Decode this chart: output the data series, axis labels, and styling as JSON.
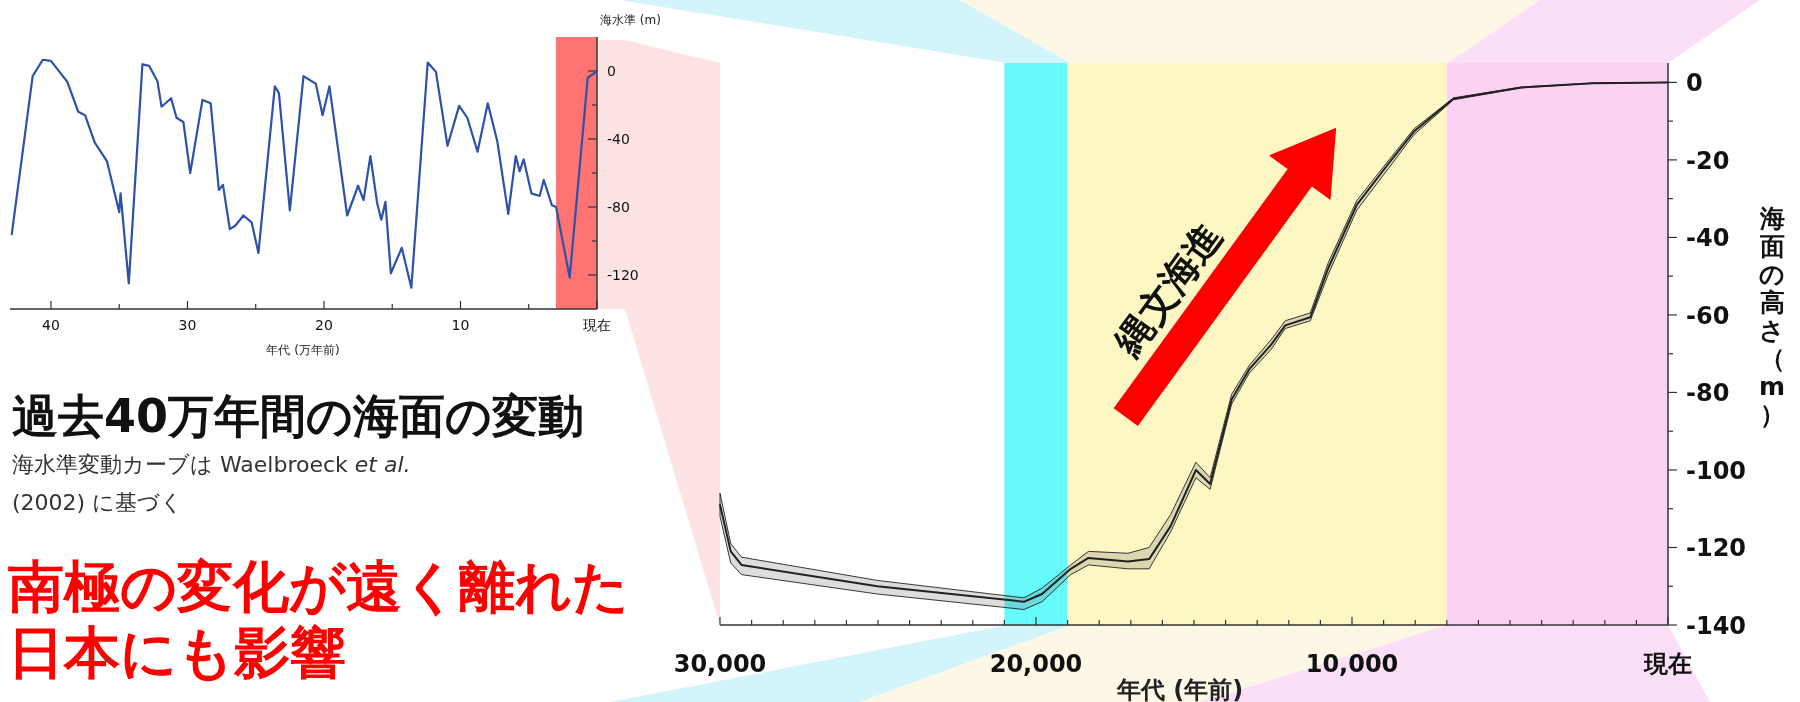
{
  "chart_data": [
    {
      "type": "line",
      "title": "過去40万年間の海面の変動",
      "subtitle": "海水準変動カーブは Waelbroeck *et al.* (2002) に基づく",
      "annotations": [
        "南極の変化が遠く離れた日本にも影響"
      ],
      "xlabel": "年代 (万年前)",
      "ylabel": "海水準 (m)",
      "xlim": [
        43,
        0
      ],
      "ylim": [
        -140,
        20
      ],
      "xticks": [
        40,
        {
          "value": 35,
          "label": null
        },
        30,
        {
          "value": 25,
          "label": null
        },
        20,
        {
          "value": 15,
          "label": null
        },
        10,
        {
          "value": 5,
          "label": null
        },
        {
          "value": 0,
          "label": "現在"
        }
      ],
      "yticks": [
        0,
        {
          "value": -20,
          "label": null
        },
        -40,
        {
          "value": -60,
          "label": null
        },
        -80,
        {
          "value": -100,
          "label": null
        },
        -120
      ],
      "bands": [
        {
          "axis": "x",
          "from": 3,
          "to": 0,
          "color": "#ff7373"
        }
      ],
      "series": [
        {
          "color": "#2d52a8",
          "x": [
            42.87,
            41.34,
            40.6,
            40.0,
            38.8,
            38.0,
            37.5,
            36.8,
            35.9,
            35.0,
            34.9,
            34.3,
            33.3,
            32.8,
            32.2,
            31.9,
            31.2,
            30.8,
            30.3,
            29.8,
            28.9,
            28.3,
            27.7,
            27.4,
            26.9,
            26.5,
            25.9,
            25.3,
            24.8,
            23.6,
            23.3,
            22.5,
            21.5,
            20.6,
            20.1,
            19.6,
            18.3,
            17.5,
            17.1,
            16.6,
            16.1,
            15.8,
            15.5,
            15.1,
            14.3,
            13.6,
            12.4,
            11.8,
            10.95,
            10.1,
            9.5,
            8.75,
            8.0,
            7.3,
            6.5,
            5.95,
            5.67,
            5.37,
            4.8,
            4.2,
            3.9,
            3.3,
            3.0,
            2.0,
            0.68,
            0
          ],
          "values": [
            -96,
            -3,
            6.6,
            6,
            -6.4,
            -24,
            -26,
            -42,
            -53,
            -83,
            -72,
            -125,
            4,
            3,
            -6,
            -21,
            -16,
            -27.5,
            -30,
            -60,
            -17,
            -19,
            -70,
            -67,
            -93,
            -91,
            -85,
            -89,
            -107,
            -9,
            -13,
            -82,
            -3,
            -7.5,
            -26,
            -9,
            -85,
            -67.5,
            -76,
            -50,
            -78,
            -87.5,
            -77,
            -119,
            -104,
            -127.5,
            5,
            -0.5,
            -44,
            -20.5,
            -27.5,
            -47.5,
            -19,
            -41.5,
            -84,
            -50,
            -59,
            -52,
            -72,
            -73.5,
            -64,
            -79,
            -80,
            -121.5,
            -4,
            0
          ]
        }
      ]
    },
    {
      "type": "line",
      "annotations": [
        "縄文海進"
      ],
      "xlabel": "年代 (年前)",
      "ylabel": "海面の高さ（m）",
      "xlim": [
        30000,
        0
      ],
      "ylim": [
        -140,
        5
      ],
      "xticks": [
        {
          "value": 30000,
          "label": "30,000"
        },
        {
          "value": 29000,
          "label": null
        },
        {
          "value": 28000,
          "label": null
        },
        {
          "value": 27000,
          "label": null
        },
        {
          "value": 26000,
          "label": null
        },
        {
          "value": 25000,
          "label": null
        },
        {
          "value": 24000,
          "label": null
        },
        {
          "value": 23000,
          "label": null
        },
        {
          "value": 22000,
          "label": null
        },
        {
          "value": 21000,
          "label": null
        },
        {
          "value": 20000,
          "label": "20,000"
        },
        {
          "value": 19000,
          "label": null
        },
        {
          "value": 18000,
          "label": null
        },
        {
          "value": 17000,
          "label": null
        },
        {
          "value": 16000,
          "label": null
        },
        {
          "value": 15000,
          "label": null
        },
        {
          "value": 14000,
          "label": null
        },
        {
          "value": 13000,
          "label": null
        },
        {
          "value": 12000,
          "label": null
        },
        {
          "value": 11000,
          "label": null
        },
        {
          "value": 10000,
          "label": "10,000"
        },
        {
          "value": 9000,
          "label": null
        },
        {
          "value": 8000,
          "label": null
        },
        {
          "value": 7000,
          "label": null
        },
        {
          "value": 6000,
          "label": null
        },
        {
          "value": 5000,
          "label": null
        },
        {
          "value": 4000,
          "label": null
        },
        {
          "value": 3000,
          "label": null
        },
        {
          "value": 2000,
          "label": null
        },
        {
          "value": 1000,
          "label": null
        },
        {
          "value": 0,
          "label": "現在"
        }
      ],
      "yticks": [
        0,
        {
          "value": -10,
          "label": null
        },
        -20,
        {
          "value": -30,
          "label": null
        },
        -40,
        {
          "value": -50,
          "label": null
        },
        -60,
        {
          "value": -70,
          "label": null
        },
        -80,
        {
          "value": -90,
          "label": null
        },
        -100,
        {
          "value": -110,
          "label": null
        },
        -120,
        {
          "value": -130,
          "label": null
        },
        -140
      ],
      "bands": [
        {
          "axis": "x",
          "from": 21000,
          "to": 19000,
          "color": "#66fafa"
        },
        {
          "axis": "x",
          "from": 19000,
          "to": 7000,
          "color": "#fdf7c3"
        },
        {
          "axis": "x",
          "from": 7000,
          "to": 0,
          "color": "#fcd2f4"
        }
      ],
      "series": [
        {
          "color": "#222222",
          "x": [
            30000,
            29660,
            29320,
            25020,
            20380,
            19810,
            18900,
            18340,
            17090,
            16420,
            15740,
            14940,
            14490,
            13810,
            13250,
            12570,
            12110,
            11320,
            10750,
            9850,
            8830,
            8040,
            6790,
            4640,
            2380,
            0
          ],
          "values": [
            -109,
            -121,
            -124.5,
            -130,
            -134,
            -132,
            -125.5,
            -122.7,
            -123.6,
            -123,
            -114.5,
            -100,
            -103.6,
            -81.8,
            -74,
            -67.8,
            -62.7,
            -60.6,
            -47.9,
            -31.6,
            -20.8,
            -12.7,
            -4.2,
            -1.3,
            -0.2,
            0
          ],
          "upper": [
            -106,
            -119,
            -122.5,
            -128.5,
            -133,
            -130.5,
            -124.5,
            -121,
            -121.5,
            -120,
            -111.5,
            -98,
            -102,
            -80.5,
            -73,
            -66.5,
            -61.5,
            -59.5,
            -46.5,
            -30.5,
            -20,
            -12,
            -4,
            -1.2,
            -0.2,
            0
          ],
          "lower": [
            -112,
            -124,
            -127,
            -132,
            -136,
            -134,
            -127,
            -124.5,
            -125.5,
            -125.5,
            -116,
            -102,
            -105,
            -83,
            -75,
            -69,
            -63.5,
            -61.5,
            -49.5,
            -33,
            -22,
            -13.5,
            -4.5,
            -1.4,
            -0.2,
            0
          ]
        }
      ]
    }
  ]
}
